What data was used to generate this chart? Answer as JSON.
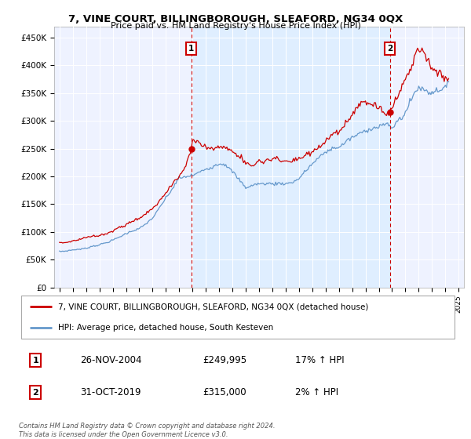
{
  "title": "7, VINE COURT, BILLINGBOROUGH, SLEAFORD, NG34 0QX",
  "subtitle": "Price paid vs. HM Land Registry's House Price Index (HPI)",
  "ylim": [
    0,
    470000
  ],
  "yticks": [
    0,
    50000,
    100000,
    150000,
    200000,
    250000,
    300000,
    350000,
    400000,
    450000
  ],
  "ytick_labels": [
    "£0",
    "£50K",
    "£100K",
    "£150K",
    "£200K",
    "£250K",
    "£300K",
    "£350K",
    "£400K",
    "£450K"
  ],
  "sale1_year": 2004.917,
  "sale1_price": 249995,
  "sale2_year": 2019.833,
  "sale2_price": 315000,
  "property_color": "#cc0000",
  "hpi_color": "#6699cc",
  "shade_color": "#ddeeff",
  "legend_property": "7, VINE COURT, BILLINGBOROUGH, SLEAFORD, NG34 0QX (detached house)",
  "legend_hpi": "HPI: Average price, detached house, South Kesteven",
  "sale1_date": "26-NOV-2004",
  "sale1_price_str": "£249,995",
  "sale1_hpi_str": "17% ↑ HPI",
  "sale2_date": "31-OCT-2019",
  "sale2_price_str": "£315,000",
  "sale2_hpi_str": "2% ↑ HPI",
  "footer": "Contains HM Land Registry data © Crown copyright and database right 2024.\nThis data is licensed under the Open Government Licence v3.0.",
  "background_color": "#ffffff",
  "plot_bg_color": "#eef2ff",
  "xtick_years": [
    1995,
    1996,
    1997,
    1998,
    1999,
    2000,
    2001,
    2002,
    2003,
    2004,
    2005,
    2006,
    2007,
    2008,
    2009,
    2010,
    2011,
    2012,
    2013,
    2014,
    2015,
    2016,
    2017,
    2018,
    2019,
    2020,
    2021,
    2022,
    2023,
    2024,
    2025
  ]
}
